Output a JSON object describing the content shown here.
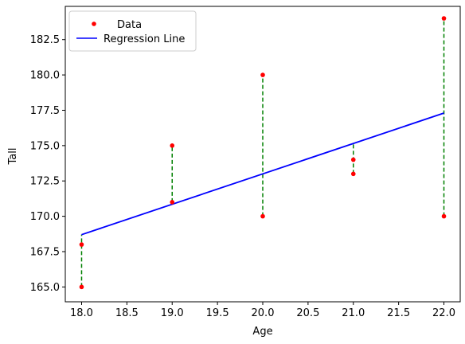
{
  "chart_data": {
    "type": "scatter",
    "title": "",
    "xlabel": "Age",
    "ylabel": "Tall",
    "xlim": [
      17.82,
      22.18
    ],
    "ylim": [
      163.95,
      184.85
    ],
    "x_ticks": [
      18.0,
      18.5,
      19.0,
      19.5,
      20.0,
      20.5,
      21.0,
      21.5,
      22.0
    ],
    "x_tick_labels": [
      "18.0",
      "18.5",
      "19.0",
      "19.5",
      "20.0",
      "20.5",
      "21.0",
      "21.5",
      "22.0"
    ],
    "y_ticks": [
      165.0,
      167.5,
      170.0,
      172.5,
      175.0,
      177.5,
      180.0,
      182.5
    ],
    "y_tick_labels": [
      "165.0",
      "167.5",
      "170.0",
      "172.5",
      "175.0",
      "177.5",
      "180.0",
      "182.5"
    ],
    "grid": false,
    "legend_position": "top-left",
    "series": [
      {
        "name": "Data",
        "kind": "points",
        "color": "#ff0000",
        "points": [
          {
            "x": 18,
            "y": 165
          },
          {
            "x": 18,
            "y": 168
          },
          {
            "x": 19,
            "y": 171
          },
          {
            "x": 19,
            "y": 175
          },
          {
            "x": 20,
            "y": 170
          },
          {
            "x": 20,
            "y": 180
          },
          {
            "x": 21,
            "y": 173
          },
          {
            "x": 21,
            "y": 174
          },
          {
            "x": 22,
            "y": 170
          },
          {
            "x": 22,
            "y": 184
          }
        ]
      },
      {
        "name": "Regression Line",
        "kind": "line",
        "color": "#0000ff",
        "x": [
          18,
          22
        ],
        "y": [
          168.7,
          177.3
        ]
      }
    ],
    "residuals": {
      "color": "#008000",
      "style": "dashed",
      "segments": [
        {
          "x": 18,
          "y_from": 165,
          "y_to": 168.7
        },
        {
          "x": 19,
          "y_from": 171,
          "y_to": 175
        },
        {
          "x": 20,
          "y_from": 170,
          "y_to": 180
        },
        {
          "x": 21,
          "y_from": 173,
          "y_to": 175.15
        },
        {
          "x": 22,
          "y_from": 170,
          "y_to": 184
        }
      ]
    }
  }
}
